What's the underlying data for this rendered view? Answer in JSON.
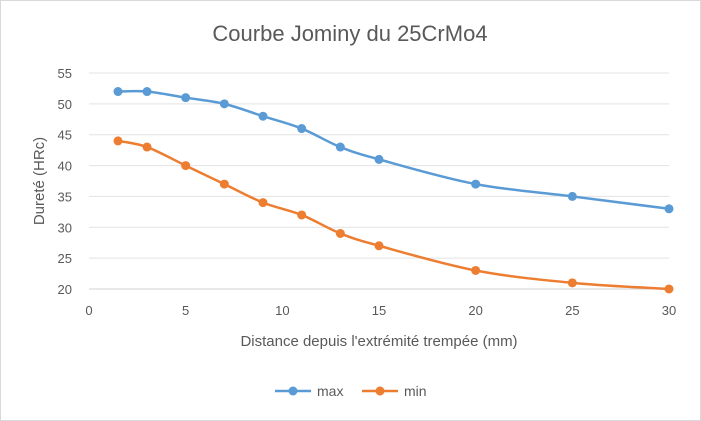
{
  "chart_data": {
    "type": "line",
    "title": "Courbe Jominy du 25CrMo4",
    "xlabel": "Distance depuis l'extrémité trempée (mm)",
    "ylabel": "Dureté (HRc)",
    "x": [
      1.5,
      3,
      5,
      7,
      9,
      11,
      13,
      15,
      20,
      25,
      30
    ],
    "xlim": [
      0,
      30
    ],
    "ylim": [
      20,
      55
    ],
    "xticks": [
      0,
      5,
      10,
      15,
      20,
      25,
      30
    ],
    "yticks": [
      20,
      25,
      30,
      35,
      40,
      45,
      50,
      55
    ],
    "grid": "horizontal",
    "legend_position": "bottom",
    "series": [
      {
        "name": "max",
        "color": "#5b9bd5",
        "values": [
          52,
          52,
          51,
          50,
          48,
          46,
          43,
          41,
          37,
          35,
          33
        ]
      },
      {
        "name": "min",
        "color": "#ed7d31",
        "values": [
          44,
          43,
          40,
          37,
          34,
          32,
          29,
          27,
          23,
          21,
          20
        ]
      }
    ]
  }
}
